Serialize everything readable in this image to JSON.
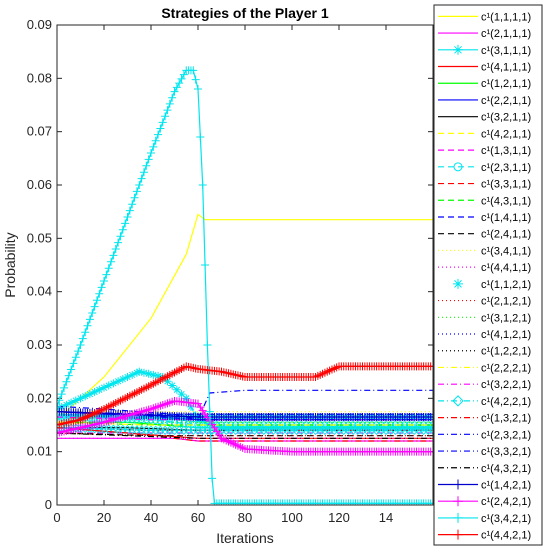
{
  "chart_data": {
    "type": "line",
    "title": "Strategies of the Player 1",
    "xlabel": "Iterations",
    "ylabel": "Probability",
    "xlim": [
      0,
      160
    ],
    "ylim": [
      0,
      0.09
    ],
    "x_ticks": [
      "0",
      "20",
      "40",
      "60",
      "80",
      "100",
      "120",
      "14"
    ],
    "y_ticks": [
      "0",
      "0.01",
      "0.02",
      "0.03",
      "0.04",
      "0.05",
      "0.06",
      "0.07",
      "0.08",
      "0.09"
    ],
    "legend_position": "right",
    "series": [
      {
        "name": "c¹(1,1,1,1)",
        "color": "#ffff00",
        "dash": "",
        "marker": "",
        "points": [
          [
            0,
            0.016
          ],
          [
            20,
            0.024
          ],
          [
            40,
            0.035
          ],
          [
            55,
            0.047
          ],
          [
            60,
            0.0545
          ],
          [
            63,
            0.0535
          ],
          [
            160,
            0.0535
          ]
        ]
      },
      {
        "name": "c¹(2,1,1,1)",
        "color": "#ff00ff",
        "dash": "",
        "marker": "",
        "points": [
          [
            0,
            0.0125
          ],
          [
            50,
            0.0125
          ],
          [
            60,
            0.012
          ],
          [
            160,
            0.012
          ]
        ]
      },
      {
        "name": "c¹(3,1,1,1)",
        "color": "#00e5ee",
        "dash": "",
        "marker": "star",
        "points": [
          [
            0,
            0.018
          ],
          [
            20,
            0.022
          ],
          [
            35,
            0.025
          ],
          [
            45,
            0.024
          ],
          [
            55,
            0.02
          ],
          [
            60,
            0.016
          ],
          [
            70,
            0.0145
          ],
          [
            160,
            0.0145
          ]
        ]
      },
      {
        "name": "c¹(4,1,1,1)",
        "color": "#ff0000",
        "dash": "",
        "marker": "",
        "points": [
          [
            0,
            0.0145
          ],
          [
            30,
            0.0135
          ],
          [
            60,
            0.0125
          ],
          [
            160,
            0.0125
          ]
        ]
      },
      {
        "name": "c¹(1,2,1,1)",
        "color": "#00ff00",
        "dash": "",
        "marker": "",
        "points": [
          [
            0,
            0.0155
          ],
          [
            30,
            0.0155
          ],
          [
            60,
            0.0145
          ],
          [
            160,
            0.0145
          ]
        ]
      },
      {
        "name": "c¹(2,2,1,1)",
        "color": "#0000ff",
        "dash": "",
        "marker": "",
        "points": [
          [
            0,
            0.0175
          ],
          [
            40,
            0.0165
          ],
          [
            60,
            0.016
          ],
          [
            160,
            0.016
          ]
        ]
      },
      {
        "name": "c¹(3,2,1,1)",
        "color": "#000000",
        "dash": "",
        "marker": "",
        "points": [
          [
            0,
            0.0145
          ],
          [
            30,
            0.0145
          ],
          [
            60,
            0.014
          ],
          [
            160,
            0.014
          ]
        ]
      },
      {
        "name": "c¹(4,2,1,1)",
        "color": "#ffff00",
        "dash": "6 4",
        "marker": "",
        "points": [
          [
            0,
            0.0165
          ],
          [
            40,
            0.0165
          ],
          [
            60,
            0.0155
          ],
          [
            160,
            0.0155
          ]
        ]
      },
      {
        "name": "c¹(1,3,1,1)",
        "color": "#ff00ff",
        "dash": "6 4",
        "marker": "",
        "points": [
          [
            0,
            0.0135
          ],
          [
            40,
            0.0135
          ],
          [
            160,
            0.0135
          ]
        ]
      },
      {
        "name": "c¹(2,3,1,1)",
        "color": "#00e5ee",
        "dash": "6 4",
        "marker": "circle",
        "points": [
          [
            0,
            0.0165
          ],
          [
            40,
            0.016
          ],
          [
            60,
            0.015
          ],
          [
            160,
            0.015
          ]
        ]
      },
      {
        "name": "c¹(3,3,1,1)",
        "color": "#ff0000",
        "dash": "6 4",
        "marker": "",
        "points": [
          [
            0,
            0.0145
          ],
          [
            40,
            0.014
          ],
          [
            160,
            0.014
          ]
        ]
      },
      {
        "name": "c¹(4,3,1,1)",
        "color": "#00ff00",
        "dash": "6 4",
        "marker": "",
        "points": [
          [
            0,
            0.0155
          ],
          [
            40,
            0.015
          ],
          [
            160,
            0.015
          ]
        ]
      },
      {
        "name": "c¹(1,4,1,1)",
        "color": "#0000ff",
        "dash": "6 4",
        "marker": "",
        "points": [
          [
            0,
            0.0175
          ],
          [
            40,
            0.017
          ],
          [
            160,
            0.017
          ]
        ]
      },
      {
        "name": "c¹(2,4,1,1)",
        "color": "#000000",
        "dash": "6 4",
        "marker": "",
        "points": [
          [
            0,
            0.0135
          ],
          [
            40,
            0.013
          ],
          [
            160,
            0.013
          ]
        ]
      },
      {
        "name": "c¹(3,4,1,1)",
        "color": "#ffff00",
        "dash": "1 3",
        "marker": "",
        "points": [
          [
            0,
            0.0175
          ],
          [
            40,
            0.0175
          ],
          [
            160,
            0.0175
          ]
        ]
      },
      {
        "name": "c¹(4,4,1,1)",
        "color": "#ff00ff",
        "dash": "1 3",
        "marker": "",
        "points": [
          [
            0,
            0.0125
          ],
          [
            40,
            0.0125
          ],
          [
            160,
            0.0125
          ]
        ]
      },
      {
        "name": "c¹(1,1,2,1)",
        "color": "#00e5ee",
        "dash": "none",
        "marker": "asterisk",
        "points": [
          [
            0,
            0.0165
          ],
          [
            40,
            0.0165
          ],
          [
            160,
            0.0165
          ]
        ]
      },
      {
        "name": "c¹(2,1,2,1)",
        "color": "#ff0000",
        "dash": "1 3",
        "marker": "",
        "points": [
          [
            0,
            0.0135
          ],
          [
            40,
            0.013
          ],
          [
            160,
            0.013
          ]
        ]
      },
      {
        "name": "c¹(3,1,2,1)",
        "color": "#00ff00",
        "dash": "1 3",
        "marker": "",
        "points": [
          [
            0,
            0.0155
          ],
          [
            40,
            0.0155
          ],
          [
            160,
            0.0155
          ]
        ]
      },
      {
        "name": "c¹(4,1,2,1)",
        "color": "#0000ff",
        "dash": "1 3",
        "marker": "",
        "points": [
          [
            0,
            0.0175
          ],
          [
            40,
            0.017
          ],
          [
            160,
            0.017
          ]
        ]
      },
      {
        "name": "c¹(1,2,2,1)",
        "color": "#000000",
        "dash": "1 3",
        "marker": "",
        "points": [
          [
            0,
            0.0145
          ],
          [
            40,
            0.014
          ],
          [
            160,
            0.014
          ]
        ]
      },
      {
        "name": "c¹(2,2,2,1)",
        "color": "#ffff00",
        "dash": "6 3 1 3",
        "marker": "",
        "points": [
          [
            0,
            0.0155
          ],
          [
            40,
            0.015
          ],
          [
            160,
            0.015
          ]
        ]
      },
      {
        "name": "c¹(3,2,2,1)",
        "color": "#ff00ff",
        "dash": "6 3 1 3",
        "marker": "",
        "points": [
          [
            0,
            0.0165
          ],
          [
            40,
            0.016
          ],
          [
            160,
            0.016
          ]
        ]
      },
      {
        "name": "c¹(4,2,2,1)",
        "color": "#00e5ee",
        "dash": "6 3 1 3",
        "marker": "diamond",
        "points": [
          [
            0,
            0.0145
          ],
          [
            40,
            0.014
          ],
          [
            160,
            0.014
          ]
        ]
      },
      {
        "name": "c¹(1,3,2,1)",
        "color": "#ff0000",
        "dash": "6 3 1 3",
        "marker": "",
        "points": [
          [
            0,
            0.0145
          ],
          [
            30,
            0.0135
          ],
          [
            60,
            0.012
          ],
          [
            160,
            0.012
          ]
        ]
      },
      {
        "name": "c¹(2,3,2,1)",
        "color": "#0000ff",
        "dash": "6 3 1 3",
        "marker": "",
        "points": [
          [
            0,
            0.0175
          ],
          [
            30,
            0.017
          ],
          [
            60,
            0.016
          ],
          [
            65,
            0.021
          ],
          [
            80,
            0.0215
          ],
          [
            160,
            0.0215
          ]
        ]
      },
      {
        "name": "c¹(3,3,2,1)",
        "color": "#0000ff",
        "dash": "6 3 1 3",
        "marker": "",
        "points": [
          [
            0,
            0.0185
          ],
          [
            20,
            0.018
          ],
          [
            50,
            0.017
          ],
          [
            60,
            0.016
          ],
          [
            160,
            0.016
          ]
        ]
      },
      {
        "name": "c¹(4,3,2,1)",
        "color": "#000000",
        "dash": "6 3 1 3",
        "marker": "",
        "points": [
          [
            0,
            0.0135
          ],
          [
            30,
            0.013
          ],
          [
            60,
            0.0125
          ],
          [
            160,
            0.0125
          ]
        ]
      },
      {
        "name": "c¹(1,4,2,1)",
        "color": "#0000cd",
        "dash": "",
        "marker": "plus",
        "points": [
          [
            0,
            0.0175
          ],
          [
            30,
            0.017
          ],
          [
            60,
            0.0165
          ],
          [
            160,
            0.0165
          ]
        ]
      },
      {
        "name": "c¹(2,4,2,1)",
        "color": "#ff00ff",
        "dash": "",
        "marker": "plus",
        "points": [
          [
            0,
            0.0135
          ],
          [
            20,
            0.0155
          ],
          [
            40,
            0.018
          ],
          [
            50,
            0.0195
          ],
          [
            60,
            0.019
          ],
          [
            70,
            0.0125
          ],
          [
            80,
            0.0105
          ],
          [
            100,
            0.01
          ],
          [
            160,
            0.01
          ]
        ]
      },
      {
        "name": "c¹(3,4,2,1)",
        "color": "#00e5ee",
        "dash": "",
        "marker": "plus",
        "points": [
          [
            0,
            0.0185
          ],
          [
            10,
            0.03
          ],
          [
            20,
            0.042
          ],
          [
            30,
            0.054
          ],
          [
            40,
            0.066
          ],
          [
            50,
            0.0775
          ],
          [
            55,
            0.0815
          ],
          [
            58,
            0.0815
          ],
          [
            60,
            0.078
          ],
          [
            62,
            0.06
          ],
          [
            64,
            0.03
          ],
          [
            66,
            0.005
          ],
          [
            67,
            0.0003
          ],
          [
            160,
            0.0003
          ]
        ]
      },
      {
        "name": "c¹(4,4,2,1)",
        "color": "#ff0000",
        "dash": "",
        "marker": "plus",
        "points": [
          [
            0,
            0.015
          ],
          [
            10,
            0.016
          ],
          [
            20,
            0.018
          ],
          [
            40,
            0.0225
          ],
          [
            55,
            0.026
          ],
          [
            60,
            0.0255
          ],
          [
            70,
            0.025
          ],
          [
            80,
            0.024
          ],
          [
            110,
            0.024
          ],
          [
            120,
            0.026
          ],
          [
            160,
            0.026
          ]
        ]
      }
    ]
  }
}
